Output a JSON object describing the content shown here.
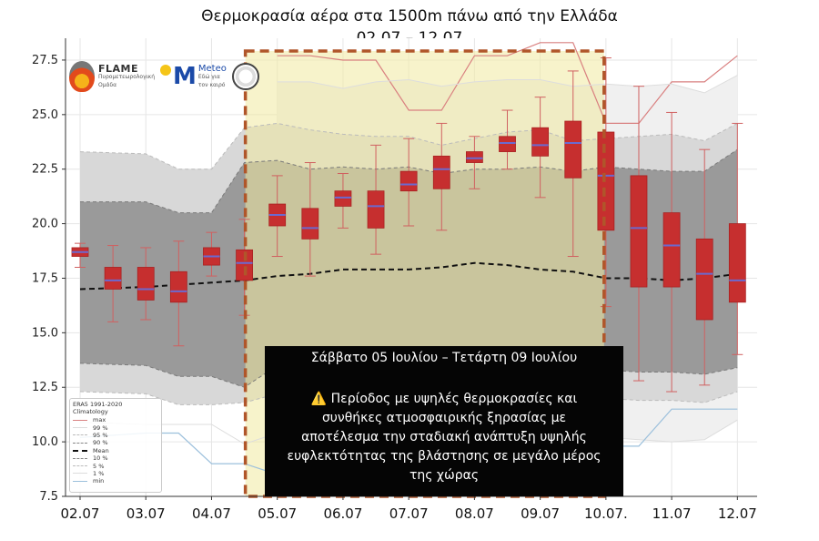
{
  "title": {
    "line1": "Θερμοκρασία αέρα στα 1500m πάνω από την Ελλάδα",
    "line2": "02.07 – 12.07"
  },
  "logos": {
    "flame_name": "FLAME",
    "flame_sub1": "Πυρομετεωρολογική",
    "flame_sub2": "Ομάδα",
    "meteo_name": "Meteo",
    "meteo_sub1": "Εδώ για",
    "meteo_sub2": "τον καιρό"
  },
  "legend": {
    "title1": "ERA5 1991-2020",
    "title2": "Climatology",
    "entries": [
      {
        "label": "max",
        "color": "#d98080",
        "style": "solid"
      },
      {
        "label": "99 %",
        "color": "#dddddd",
        "style": "solid"
      },
      {
        "label": "95 %",
        "color": "#bbbbbb",
        "style": "dashed"
      },
      {
        "label": "90 %",
        "color": "#888888",
        "style": "dashed"
      },
      {
        "label": "Mean",
        "color": "#111111",
        "style": "dashed"
      },
      {
        "label": "10 %",
        "color": "#888888",
        "style": "dashed"
      },
      {
        "label": "5 %",
        "color": "#bbbbbb",
        "style": "dashed"
      },
      {
        "label": "1 %",
        "color": "#dddddd",
        "style": "solid"
      },
      {
        "label": "min",
        "color": "#9cc0dc",
        "style": "solid"
      }
    ]
  },
  "callout": {
    "date_range": "Σάββατο 05 Ιουλίου – Τετάρτη 09 Ιουλίου",
    "warning_icon": "⚠️",
    "line1": "Περίοδος με υψηλές θερμοκρασίες και",
    "line2": "συνθήκες ατμοσφαιρικής ξηρασίας με",
    "line3": "αποτέλεσμα την σταδιακή ανάπτυξη υψηλής",
    "line4": "ευφλεκτότητας της βλάστησης σε μεγάλο μέρος",
    "line5": "της χώρας"
  },
  "chart_data": {
    "type": "box",
    "xlabel": "",
    "ylabel": "",
    "ylim": [
      7.5,
      28.5
    ],
    "xlim": [
      0,
      10.3
    ],
    "yticks": [
      7.5,
      10.0,
      12.5,
      15.0,
      17.5,
      20.0,
      22.5,
      25.0,
      27.5
    ],
    "ytick_labels": [
      "7.5",
      "10.0",
      "12.5",
      "15.0",
      "17.5",
      "20.0",
      "22.5",
      "25.0",
      "27.5"
    ],
    "xticks": [
      0,
      1,
      2,
      3,
      4,
      5,
      6,
      7,
      8,
      9,
      10
    ],
    "xtick_labels": [
      "02.07",
      "03.07",
      "04.07",
      "05.07",
      "06.07",
      "07.07",
      "08.07",
      "09.07",
      "10.07.",
      "11.07",
      "12.07"
    ],
    "grid": true,
    "highlight_period": [
      2.75,
      7.75
    ],
    "highlight_color": "#f0eaa0",
    "highlight_border_color": "#b0562a",
    "box_color": "#c62f2f",
    "median_color": "#6a6ad0",
    "climatology": {
      "x": [
        0,
        1,
        1.5,
        2,
        2.5,
        3,
        3.5,
        4,
        4.5,
        5,
        5.5,
        6,
        6.5,
        7,
        7.5,
        8,
        8.5,
        9,
        9.5,
        10
      ],
      "max": [
        null,
        null,
        null,
        null,
        null,
        27.7,
        27.7,
        27.5,
        27.5,
        25.2,
        25.2,
        27.7,
        27.7,
        28.3,
        28.3,
        24.6,
        24.6,
        26.5,
        26.5,
        27.7
      ],
      "p99": [
        null,
        null,
        null,
        null,
        null,
        26.5,
        26.5,
        26.2,
        26.5,
        26.6,
        26.3,
        26.5,
        26.6,
        26.6,
        26.3,
        26.4,
        26.3,
        26.4,
        26.0,
        26.8
      ],
      "p95": [
        23.3,
        23.2,
        22.5,
        22.5,
        24.4,
        24.6,
        24.3,
        24.1,
        24.0,
        24.0,
        23.6,
        23.9,
        24.2,
        24.3,
        23.8,
        23.9,
        24.0,
        24.1,
        23.8,
        24.6
      ],
      "p90": [
        21.0,
        21.0,
        20.5,
        20.5,
        22.8,
        22.9,
        22.5,
        22.6,
        22.5,
        22.6,
        22.3,
        22.5,
        22.5,
        22.6,
        22.4,
        22.6,
        22.5,
        22.4,
        22.4,
        23.4
      ],
      "mean": [
        17.0,
        17.1,
        17.2,
        17.3,
        17.4,
        17.6,
        17.7,
        17.9,
        17.9,
        17.9,
        18.0,
        18.2,
        18.1,
        17.9,
        17.8,
        17.5,
        17.5,
        17.4,
        17.5,
        17.7
      ],
      "p10": [
        13.6,
        13.5,
        13.0,
        13.0,
        12.5,
        13.5,
        13.5,
        13.5,
        13.4,
        13.6,
        13.5,
        13.6,
        13.4,
        13.4,
        13.6,
        13.3,
        13.2,
        13.2,
        13.1,
        13.4
      ],
      "p5": [
        12.3,
        12.2,
        11.7,
        11.7,
        11.8,
        12.2,
        12.2,
        12.2,
        12.1,
        12.3,
        12.2,
        12.3,
        12.1,
        12.1,
        12.3,
        12.0,
        11.9,
        11.9,
        11.8,
        12.3
      ],
      "p1": [
        10.9,
        10.8,
        10.8,
        10.8,
        9.9,
        10.4,
        10.4,
        10.4,
        10.4,
        10.6,
        10.4,
        10.6,
        10.4,
        10.4,
        10.5,
        10.2,
        10.1,
        10.0,
        10.1,
        11.0
      ],
      "min": [
        10.2,
        10.4,
        10.4,
        9.0,
        9.0,
        8.5,
        8.6,
        8.6,
        8.6,
        8.7,
        8.6,
        8.6,
        8.5,
        8.5,
        8.6,
        9.8,
        9.8,
        11.5,
        11.5,
        11.5
      ]
    },
    "boxes": [
      {
        "x": 0.0,
        "low": 18.0,
        "q1": 18.5,
        "median": 18.7,
        "q3": 18.9,
        "high": 19.1
      },
      {
        "x": 0.5,
        "low": 15.5,
        "q1": 17.0,
        "median": 17.4,
        "q3": 18.0,
        "high": 19.0
      },
      {
        "x": 1.0,
        "low": 15.6,
        "q1": 16.5,
        "median": 17.0,
        "q3": 18.0,
        "high": 18.9
      },
      {
        "x": 1.5,
        "low": 14.4,
        "q1": 16.4,
        "median": 16.9,
        "q3": 17.8,
        "high": 19.2
      },
      {
        "x": 2.0,
        "low": 17.6,
        "q1": 18.1,
        "median": 18.5,
        "q3": 18.9,
        "high": 19.6
      },
      {
        "x": 2.5,
        "low": 15.8,
        "q1": 17.4,
        "median": 18.2,
        "q3": 18.8,
        "high": 20.2
      },
      {
        "x": 3.0,
        "low": 18.5,
        "q1": 19.9,
        "median": 20.4,
        "q3": 20.9,
        "high": 22.2
      },
      {
        "x": 3.5,
        "low": 17.6,
        "q1": 19.3,
        "median": 19.8,
        "q3": 20.7,
        "high": 22.8
      },
      {
        "x": 4.0,
        "low": 19.8,
        "q1": 20.8,
        "median": 21.2,
        "q3": 21.5,
        "high": 22.3
      },
      {
        "x": 4.5,
        "low": 18.6,
        "q1": 19.8,
        "median": 20.8,
        "q3": 21.5,
        "high": 23.6
      },
      {
        "x": 5.0,
        "low": 19.9,
        "q1": 21.5,
        "median": 21.8,
        "q3": 22.4,
        "high": 23.9
      },
      {
        "x": 5.5,
        "low": 19.7,
        "q1": 21.6,
        "median": 22.5,
        "q3": 23.1,
        "high": 24.6
      },
      {
        "x": 6.0,
        "low": 21.6,
        "q1": 22.8,
        "median": 23.0,
        "q3": 23.3,
        "high": 24.0
      },
      {
        "x": 6.5,
        "low": 22.5,
        "q1": 23.3,
        "median": 23.7,
        "q3": 24.0,
        "high": 25.2
      },
      {
        "x": 7.0,
        "low": 21.2,
        "q1": 23.1,
        "median": 23.6,
        "q3": 24.4,
        "high": 25.8
      },
      {
        "x": 7.5,
        "low": 18.5,
        "q1": 22.1,
        "median": 23.7,
        "q3": 24.7,
        "high": 27.0
      },
      {
        "x": 8.0,
        "low": 16.2,
        "q1": 19.7,
        "median": 22.2,
        "q3": 24.2,
        "high": 27.6
      },
      {
        "x": 8.5,
        "low": 12.8,
        "q1": 17.1,
        "median": 19.8,
        "q3": 22.2,
        "high": 26.3
      },
      {
        "x": 9.0,
        "low": 12.3,
        "q1": 17.1,
        "median": 19.0,
        "q3": 20.5,
        "high": 25.1
      },
      {
        "x": 9.5,
        "low": 12.6,
        "q1": 15.6,
        "median": 17.7,
        "q3": 19.3,
        "high": 23.4
      },
      {
        "x": 10.0,
        "low": 14.0,
        "q1": 16.4,
        "median": 17.4,
        "q3": 20.0,
        "high": 24.6
      }
    ]
  }
}
